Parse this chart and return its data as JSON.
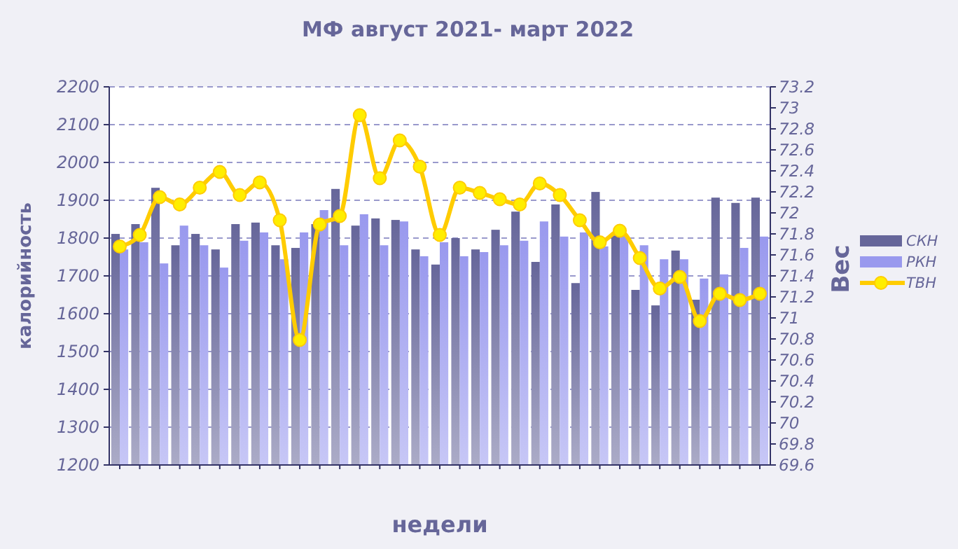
{
  "chart_data": {
    "type": "bar",
    "title": "МФ август 2021- март 2022",
    "xlabel": "недели",
    "ylabel": "калорийность",
    "y2label": "Вес",
    "categories": [
      null,
      null,
      null,
      null,
      null,
      null,
      null,
      null,
      null,
      null,
      null,
      null,
      null,
      null,
      null,
      null,
      null,
      null,
      null,
      null,
      null,
      null,
      null,
      null,
      null,
      null,
      null,
      null,
      null,
      null,
      null,
      null,
      null
    ],
    "series": [
      {
        "name": "СКН",
        "color": "#66669a",
        "values": [
          1811,
          1837,
          1933,
          1781,
          1811,
          1770,
          1837,
          1841,
          1781,
          1774,
          1837,
          1930,
          1833,
          1852,
          1848,
          1770,
          1730,
          1800,
          1770,
          1822,
          1870,
          1737,
          1889,
          1681,
          1922,
          1807,
          1663,
          1622,
          1767,
          1637,
          1907,
          1893,
          1907
        ]
      },
      {
        "name": "РКН",
        "color": "#9999ee",
        "values": [
          1770,
          1789,
          1733,
          1833,
          1781,
          1722,
          1793,
          1815,
          1744,
          1815,
          1874,
          1781,
          1863,
          1781,
          1844,
          1752,
          1789,
          1752,
          1763,
          1781,
          1793,
          1844,
          1804,
          1815,
          1778,
          1807,
          1781,
          1744,
          1744,
          1693,
          1704,
          1774,
          1804
        ]
      },
      {
        "name": "ТВН",
        "type": "line",
        "axis": "y2",
        "color": "#ffcc00",
        "marker": "circle",
        "values": [
          71.68,
          71.79,
          72.15,
          72.08,
          72.24,
          72.39,
          72.17,
          72.29,
          71.93,
          70.79,
          71.89,
          71.97,
          72.93,
          72.33,
          72.69,
          72.44,
          71.79,
          72.24,
          72.19,
          72.13,
          72.08,
          72.28,
          72.17,
          71.93,
          71.72,
          71.83,
          71.57,
          71.28,
          71.39,
          70.97,
          71.23,
          71.17,
          71.23
        ]
      }
    ],
    "ylim": [
      1200,
      2200
    ],
    "yticks": [
      1200,
      1300,
      1400,
      1500,
      1600,
      1700,
      1800,
      1900,
      2000,
      2100,
      2200
    ],
    "y2lim": [
      69.6,
      73.2
    ],
    "y2ticks": [
      69.6,
      69.8,
      70,
      70.2,
      70.4,
      70.6,
      70.8,
      71,
      71.2,
      71.4,
      71.6,
      71.8,
      72,
      72.2,
      72.4,
      72.6,
      72.8,
      73,
      73.2
    ],
    "grid": "y",
    "legend": "right"
  }
}
